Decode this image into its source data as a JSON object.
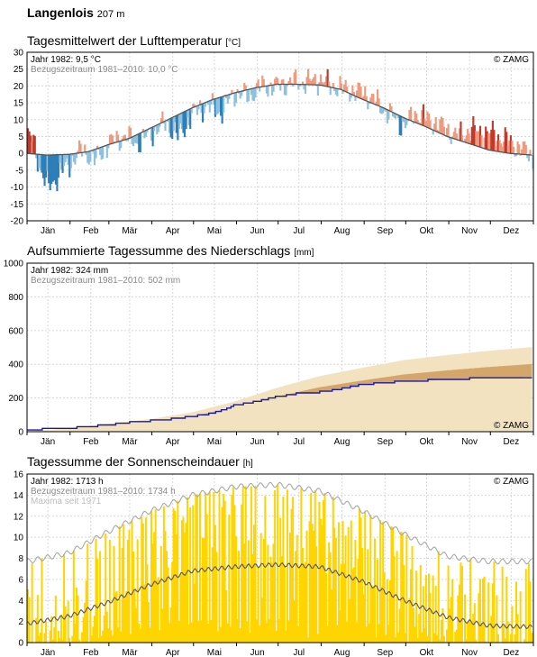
{
  "header": {
    "station": "Langenlois",
    "elevation": "207 m"
  },
  "months": [
    "Jän",
    "Feb",
    "Mär",
    "Apr",
    "Mai",
    "Jun",
    "Jul",
    "Aug",
    "Sep",
    "Okt",
    "Nov",
    "Dez"
  ],
  "copyright": "© ZAMG",
  "chart_data": [
    {
      "type": "bar",
      "title": "Tagesmittelwert der Lufttemperatur",
      "unit": "[°C]",
      "legend": [
        "Jahr 1982: 9,5 °C",
        "Bezugszeitraum 1981–2010: 10,0 °C"
      ],
      "ylim": [
        -20,
        30
      ],
      "yticks": [
        -20,
        -15,
        -10,
        -5,
        0,
        5,
        10,
        15,
        20,
        25,
        30
      ],
      "grid": true,
      "series": [
        {
          "name": "Bezugszeitraum 1981–2010",
          "x": [
            1,
            15,
            31,
            45,
            59,
            75,
            90,
            105,
            120,
            135,
            151,
            166,
            181,
            196,
            212,
            227,
            243,
            258,
            273,
            288,
            304,
            319,
            334,
            349,
            365
          ],
          "values": [
            0.0,
            -0.5,
            -0.3,
            0.5,
            2.5,
            4.5,
            7.5,
            10.5,
            13.5,
            16.0,
            18.0,
            19.5,
            20.5,
            20.5,
            20.3,
            19.0,
            16.0,
            13.5,
            10.5,
            8.0,
            5.0,
            3.0,
            1.0,
            0.0,
            -0.5
          ]
        },
        {
          "name": "Jahr 1982",
          "x": [
            1,
            5,
            10,
            15,
            20,
            31,
            40,
            50,
            59,
            70,
            80,
            90,
            100,
            110,
            120,
            130,
            140,
            150,
            160,
            170,
            181,
            190,
            200,
            212,
            220,
            230,
            243,
            250,
            260,
            273,
            280,
            290,
            304,
            310,
            320,
            334,
            340,
            350,
            358,
            365
          ],
          "values": [
            5,
            4,
            -5,
            -10,
            -8,
            -3,
            1,
            -2,
            3,
            5,
            3,
            6,
            9,
            5,
            12,
            14,
            12,
            18,
            17,
            20,
            20,
            21,
            21,
            22,
            20,
            19,
            18,
            16,
            12,
            8,
            12,
            10,
            7,
            5,
            7,
            6,
            5,
            3,
            1,
            -1
          ]
        }
      ]
    },
    {
      "type": "area",
      "title": "Aufsummierte Tagessumme des Niederschlags",
      "unit": "[mm]",
      "legend": [
        "Jahr 1982: 324 mm",
        "Bezugszeitraum 1981–2010: 502 mm"
      ],
      "ylim": [
        0,
        1000
      ],
      "yticks": [
        0,
        200,
        400,
        600,
        800,
        1000
      ],
      "grid": true,
      "series": [
        {
          "name": "Bezugszeitraum 1981–2010",
          "x": [
            1,
            31,
            59,
            90,
            120,
            151,
            181,
            212,
            243,
            273,
            304,
            334,
            365
          ],
          "values": [
            0,
            20,
            45,
            75,
            115,
            180,
            260,
            330,
            380,
            425,
            455,
            480,
            502
          ]
        },
        {
          "name": "Jahr 1982",
          "x": [
            1,
            15,
            31,
            45,
            59,
            75,
            90,
            105,
            120,
            135,
            145,
            150,
            160,
            170,
            180,
            195,
            212,
            225,
            243,
            258,
            273,
            290,
            304,
            320,
            334,
            350,
            358,
            365
          ],
          "values": [
            5,
            18,
            22,
            30,
            40,
            55,
            65,
            75,
            90,
            110,
            135,
            155,
            170,
            185,
            205,
            225,
            235,
            250,
            280,
            290,
            300,
            305,
            310,
            315,
            318,
            320,
            324,
            324
          ]
        }
      ]
    },
    {
      "type": "bar",
      "title": "Tagessumme der Sonnenscheindauer",
      "unit": "[h]",
      "legend": [
        "Jahr 1982: 1713 h",
        "Bezugszeitraum 1981–2010: 1734 h",
        "Maxima seit 1971"
      ],
      "ylim": [
        0,
        16
      ],
      "yticks": [
        0,
        2,
        4,
        6,
        8,
        10,
        12,
        14,
        16
      ],
      "grid": true,
      "series": [
        {
          "name": "Jahr 1982",
          "x": [
            1,
            10,
            20,
            31,
            40,
            50,
            59,
            70,
            80,
            90,
            100,
            110,
            120,
            130,
            140,
            150,
            160,
            170,
            181,
            190,
            200,
            212,
            220,
            230,
            243,
            250,
            260,
            273,
            280,
            290,
            304,
            310,
            320,
            334,
            340,
            350,
            358,
            365
          ],
          "values": [
            2,
            3,
            1,
            4,
            3,
            5,
            6,
            9,
            7,
            10,
            8,
            12,
            13,
            14,
            11,
            13,
            12,
            10,
            12,
            11,
            9,
            12,
            10,
            9,
            11,
            8,
            9,
            7,
            6,
            5,
            4,
            5,
            3,
            3,
            2,
            2,
            1,
            5
          ]
        },
        {
          "name": "Bezugszeitraum 1981–2010",
          "x": [
            1,
            31,
            59,
            90,
            120,
            151,
            181,
            212,
            243,
            273,
            304,
            334,
            365
          ],
          "values": [
            1.8,
            2.5,
            3.8,
            5.5,
            6.8,
            7.2,
            7.4,
            7.2,
            5.8,
            4.0,
            2.4,
            1.6,
            1.5
          ]
        },
        {
          "name": "Maxima seit 1971",
          "x": [
            1,
            31,
            59,
            90,
            120,
            151,
            181,
            212,
            243,
            273,
            304,
            334,
            365
          ],
          "values": [
            7.7,
            8.5,
            10.5,
            12.5,
            14.0,
            14.8,
            15.0,
            14.4,
            12.5,
            10.3,
            8.2,
            7.7,
            7.7
          ]
        }
      ]
    }
  ]
}
